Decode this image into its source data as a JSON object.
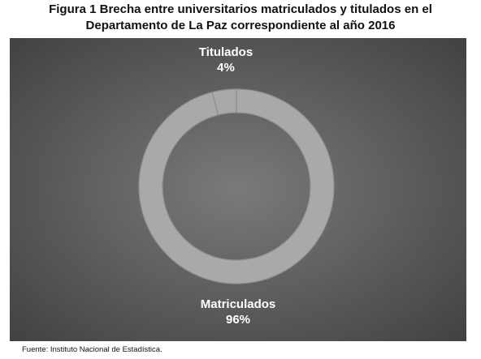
{
  "title_line1": "Figura 1 Brecha entre universitarios matriculados y titulados en el",
  "title_line2": "Departamento de La Paz correspondiente al año 2016",
  "source": "Fuente: Instituto Nacional de Estadística.",
  "colors": {
    "background_center": "#7a7a7a",
    "background_edge": "#424242",
    "ring": "#a9a9a9",
    "ring_stroke": "#8f8f8f",
    "label": "#ffffff"
  },
  "chart_data": {
    "type": "pie",
    "style": "donut",
    "categories": [
      "Titulados",
      "Matriculados"
    ],
    "values": [
      4,
      96
    ],
    "value_labels": [
      "4%",
      "96%"
    ],
    "title": "Figura 1 Brecha entre universitarios matriculados y titulados en el Departamento de La Paz correspondiente al año 2016",
    "legend": "none"
  }
}
